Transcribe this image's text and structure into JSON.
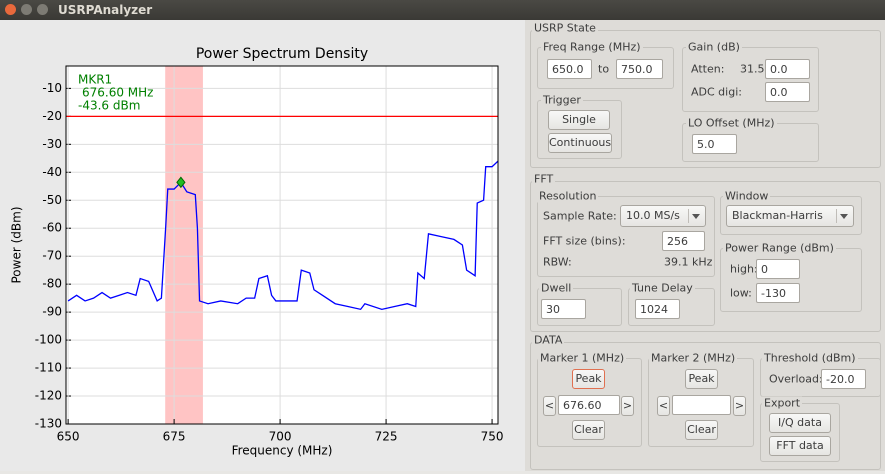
{
  "window": {
    "title": "USRPAnalyzer"
  },
  "chart_data": {
    "type": "line",
    "title": "Power Spectrum Density",
    "x_label": "Frequency (MHz)",
    "y_label": "Power (dBm)",
    "x": [
      650,
      652,
      654,
      656,
      658,
      660,
      662,
      664,
      666,
      667,
      669,
      671,
      672,
      673,
      673.5,
      675,
      676.6,
      678,
      680,
      680.5,
      681,
      683,
      686,
      690,
      692,
      694,
      695,
      697,
      698,
      699,
      702,
      704,
      705,
      707,
      708,
      710,
      713,
      716,
      719,
      720,
      724,
      727,
      730,
      732,
      732.5,
      734,
      735,
      738,
      741,
      742,
      743,
      744,
      745,
      746,
      746.5,
      748,
      748.5,
      750,
      751.4
    ],
    "values": [
      -86,
      -84,
      -86,
      -85,
      -83,
      -85,
      -84,
      -83,
      -84,
      -78,
      -79,
      -86,
      -85,
      -60,
      -46,
      -46,
      -43.6,
      -47,
      -48,
      -60,
      -86,
      -87,
      -86,
      -87,
      -85,
      -85,
      -78,
      -77,
      -84,
      -86,
      -86,
      -86,
      -75,
      -76,
      -82,
      -84,
      -87,
      -88,
      -89,
      -87,
      -89,
      -88,
      -87,
      -88,
      -76,
      -78,
      -62,
      -63,
      -64,
      -65,
      -66,
      -75,
      -76,
      -77,
      -51,
      -50,
      -38,
      -38,
      -36
    ],
    "color": "#0000ff",
    "xlim": [
      649.5,
      751.4
    ],
    "ylim": [
      -130,
      -2
    ],
    "xticks": [
      650,
      675,
      700,
      725,
      750
    ],
    "yticks": [
      -10,
      -20,
      -30,
      -40,
      -50,
      -60,
      -70,
      -80,
      -90,
      -100,
      -110,
      -120,
      -130
    ],
    "grid": true,
    "threshold": -20,
    "threshold_color": "#ff0000",
    "span": [
      672.9,
      681.8
    ],
    "span_color": "#ffb0b0",
    "marker": {
      "label": "MKR1",
      "x": 676.6,
      "y": -43.6,
      "x_label": "676.60 MHz",
      "y_label": "-43.6 dBm",
      "color": "#22bb22"
    }
  },
  "usrp_state": {
    "title": "USRP State",
    "freq_range": {
      "label": "Freq Range (MHz)",
      "from": "650.0",
      "to_label": "to",
      "to": "750.0"
    },
    "gain": {
      "label": "Gain (dB)",
      "atten_label": "Atten:",
      "atten_max": "31.5-",
      "atten": "0.0",
      "adc_label": "ADC digi:",
      "adc": "0.0"
    },
    "trigger": {
      "label": "Trigger",
      "single": "Single",
      "continuous": "Continuous"
    },
    "lo_offset": {
      "label": "LO Offset (MHz)",
      "value": "5.0"
    }
  },
  "fft": {
    "title": "FFT",
    "resolution": {
      "label": "Resolution",
      "sample_rate_label": "Sample Rate:",
      "sample_rate": "10.0 MS/s",
      "fft_size_label": "FFT size (bins):",
      "fft_size": "256",
      "rbw_label": "RBW:",
      "rbw": "39.1 kHz"
    },
    "window": {
      "label": "Window",
      "value": "Blackman-Harris"
    },
    "power_range": {
      "label": "Power Range (dBm)",
      "high_label": "high:",
      "high": "0",
      "low_label": "low:",
      "low": "-130"
    },
    "dwell": {
      "label": "Dwell",
      "value": "30"
    },
    "tune_delay": {
      "label": "Tune Delay",
      "value": "1024"
    }
  },
  "data": {
    "title": "DATA",
    "marker1": {
      "label": "Marker 1 (MHz)",
      "peak": "Peak",
      "prev": "<",
      "value": "676.60",
      "next": ">",
      "clear": "Clear"
    },
    "marker2": {
      "label": "Marker 2 (MHz)",
      "peak": "Peak",
      "prev": "<",
      "next": ">",
      "clear": "Clear"
    },
    "threshold": {
      "label": "Threshold (dBm)",
      "overload_label": "Overload:",
      "value": "-20.0"
    },
    "export": {
      "label": "Export",
      "iq": "I/Q data",
      "fft": "FFT data"
    }
  }
}
